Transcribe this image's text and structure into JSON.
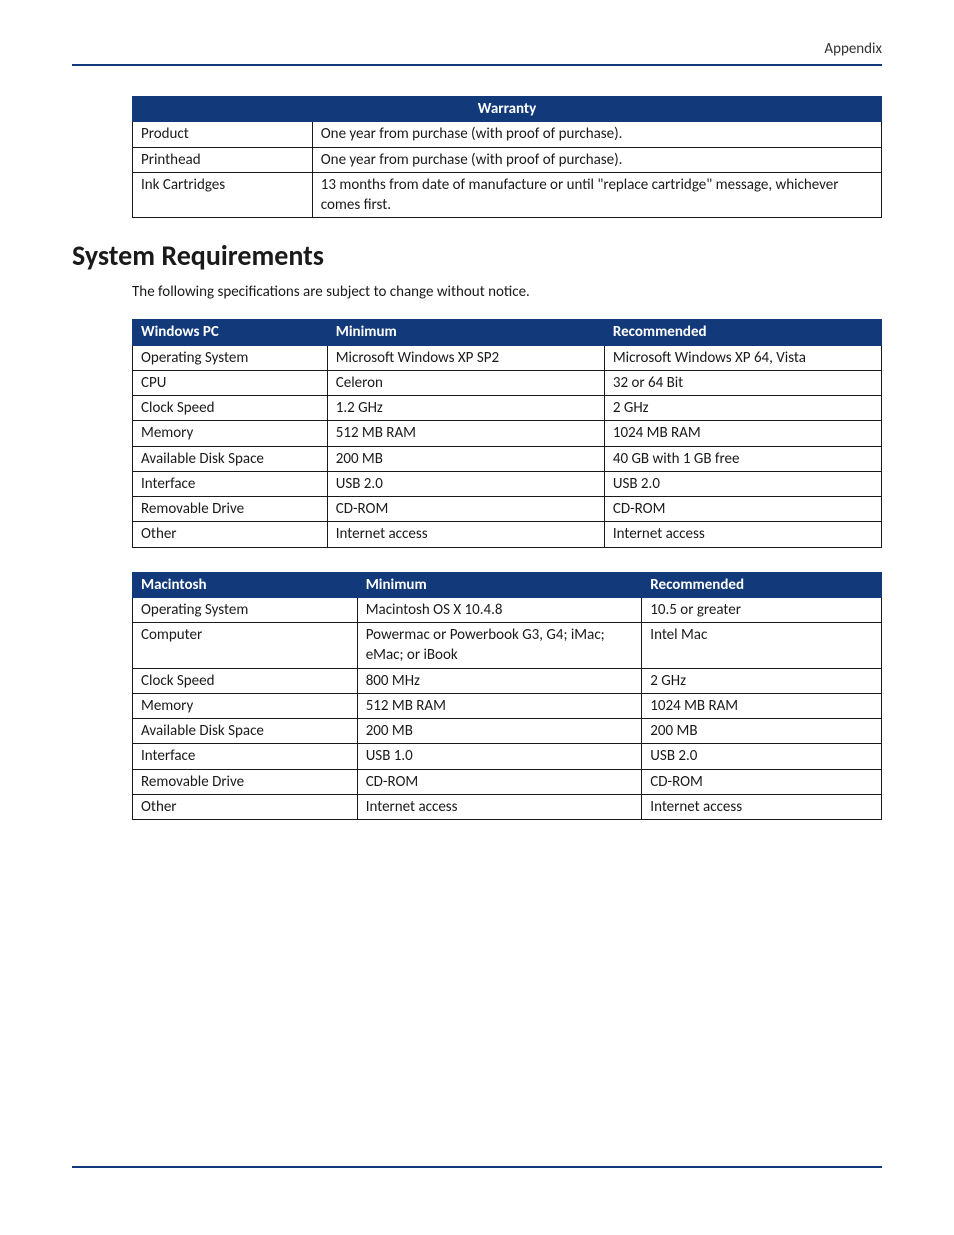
{
  "colors": {
    "header_bg": "#123a7a",
    "header_fg": "#ffffff",
    "rule": "#123a7a",
    "border": "#1a1a1a",
    "text": "#1a1a1a",
    "page_bg": "#ffffff"
  },
  "pageHeader": {
    "right": "Appendix"
  },
  "warrantyTable": {
    "title": "Warranty",
    "rows": [
      {
        "label": "Product",
        "value": "One year from purchase (with proof of purchase)."
      },
      {
        "label": "Printhead",
        "value": "One year from purchase (with proof of purchase)."
      },
      {
        "label": "Ink Cartridges",
        "value": "13 months from date of manufacture or until \"replace cartridge\" message, whichever comes first."
      }
    ],
    "colWidths": [
      "24%",
      "76%"
    ]
  },
  "section": {
    "title": "System Requirements",
    "intro": "The following specifications are subject to change without notice."
  },
  "windowsTable": {
    "headers": [
      "Windows PC",
      "Minimum",
      "Recommended"
    ],
    "colWidths": [
      "26%",
      "37%",
      "37%"
    ],
    "rows": [
      [
        "Operating System",
        "Microsoft Windows XP SP2",
        "Microsoft Windows  XP 64, Vista"
      ],
      [
        "CPU",
        "Celeron",
        "32 or 64 Bit"
      ],
      [
        "Clock Speed",
        "1.2 GHz",
        "2 GHz"
      ],
      [
        "Memory",
        "512 MB RAM",
        "1024 MB RAM"
      ],
      [
        "Available Disk Space",
        "200 MB",
        "40 GB with 1 GB free"
      ],
      [
        "Interface",
        "USB 2.0",
        "USB 2.0"
      ],
      [
        "Removable Drive",
        "CD-ROM",
        "CD-ROM"
      ],
      [
        "Other",
        "Internet access",
        "Internet access"
      ]
    ]
  },
  "macTable": {
    "headers": [
      "Macintosh",
      "Minimum",
      "Recommended"
    ],
    "colWidths": [
      "30%",
      "38%",
      "32%"
    ],
    "rows": [
      [
        "Operating System",
        "Macintosh OS X 10.4.8",
        "10.5 or greater"
      ],
      [
        "Computer",
        "Powermac or Powerbook G3, G4; iMac; eMac; or iBook",
        "Intel Mac"
      ],
      [
        "Clock Speed",
        "800 MHz",
        "2 GHz"
      ],
      [
        "Memory",
        "512 MB RAM",
        "1024 MB RAM"
      ],
      [
        "Available Disk Space",
        "200 MB",
        "200 MB"
      ],
      [
        "Interface",
        "USB 1.0",
        "USB 2.0"
      ],
      [
        "Removable Drive",
        "CD-ROM",
        "CD-ROM"
      ],
      [
        "Other",
        "Internet access",
        "Internet access"
      ]
    ]
  }
}
